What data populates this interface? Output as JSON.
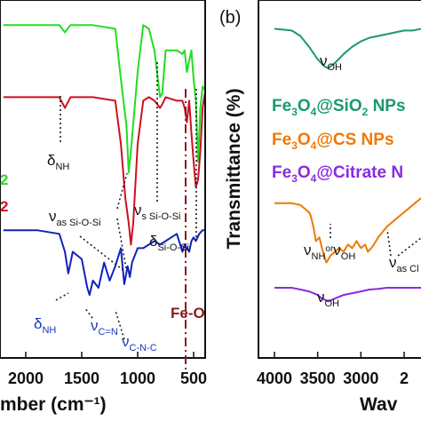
{
  "chart_data": [
    {
      "panel": "a",
      "type": "line",
      "xlabel_visible": "mber (cm⁻¹)",
      "x_reversed": true,
      "xlim": [
        2000,
        400
      ],
      "xticks": [
        "2000",
        "1500",
        "1000",
        "500"
      ],
      "visible_tick_fragment": "2",
      "series": [
        {
          "color": "#22dd22",
          "x": [
            2200,
            1700,
            1650,
            1600,
            1400,
            1200,
            1150,
            1100,
            1080,
            1060,
            1000,
            950,
            900,
            850,
            800,
            780,
            750,
            650,
            600,
            580,
            560,
            520,
            500,
            480,
            460,
            440,
            420,
            400
          ],
          "y": [
            0.93,
            0.93,
            0.91,
            0.93,
            0.93,
            0.92,
            0.78,
            0.65,
            0.52,
            0.58,
            0.8,
            0.93,
            0.92,
            0.86,
            0.73,
            0.74,
            0.86,
            0.86,
            0.85,
            0.86,
            0.8,
            0.86,
            0.78,
            0.72,
            0.55,
            0.7,
            0.76,
            0.75
          ]
        },
        {
          "color": "#cc1122",
          "x": [
            2200,
            1700,
            1650,
            1600,
            1400,
            1200,
            1150,
            1110,
            1080,
            1060,
            1040,
            1000,
            950,
            900,
            850,
            800,
            780,
            750,
            650,
            600,
            580,
            560,
            540,
            520,
            500,
            480,
            460,
            440,
            420,
            400
          ],
          "y": [
            0.73,
            0.73,
            0.7,
            0.73,
            0.73,
            0.72,
            0.6,
            0.45,
            0.38,
            0.32,
            0.38,
            0.6,
            0.72,
            0.73,
            0.72,
            0.7,
            0.71,
            0.73,
            0.72,
            0.72,
            0.7,
            0.66,
            0.72,
            0.63,
            0.55,
            0.48,
            0.5,
            0.58,
            0.7,
            0.74
          ]
        },
        {
          "color": "#1122bb",
          "x": [
            2200,
            1900,
            1700,
            1650,
            1620,
            1580,
            1500,
            1450,
            1430,
            1400,
            1350,
            1300,
            1250,
            1200,
            1150,
            1120,
            1090,
            1070,
            1050,
            1000,
            950,
            900,
            850,
            800,
            750,
            700,
            650,
            620,
            600,
            580,
            560,
            540,
            520,
            500,
            480,
            450,
            420,
            400
          ],
          "y": [
            0.36,
            0.36,
            0.35,
            0.3,
            0.24,
            0.3,
            0.28,
            0.2,
            0.18,
            0.22,
            0.2,
            0.27,
            0.22,
            0.26,
            0.31,
            0.21,
            0.26,
            0.23,
            0.27,
            0.31,
            0.31,
            0.32,
            0.33,
            0.32,
            0.33,
            0.34,
            0.35,
            0.32,
            0.3,
            0.32,
            0.31,
            0.3,
            0.33,
            0.34,
            0.33,
            0.35,
            0.36,
            0.36
          ]
        }
      ],
      "fragments": [
        "2",
        "2"
      ],
      "annotations": [
        {
          "text": "δ",
          "sub": "NH",
          "color": "#111111"
        },
        {
          "text": "ν",
          "sub": "as Si-O-Si",
          "color": "#111111"
        },
        {
          "text": "ν",
          "sub": "s Si-O-Si",
          "color": "#111111"
        },
        {
          "text": "δ",
          "sub": "Si-O-Si",
          "color": "#111111"
        },
        {
          "text": "δ",
          "sub": "NH",
          "color": "#1a35c0"
        },
        {
          "text": "ν",
          "sub": "C=N",
          "color": "#1a35c0"
        },
        {
          "text": "ν",
          "sub": "C-N-C",
          "color": "#1a35c0"
        },
        {
          "text": "Fe-O",
          "color": "#8b1a1a"
        }
      ]
    },
    {
      "panel": "b",
      "panel_label": "(b)",
      "type": "line",
      "ylabel": "Transmittance (%)",
      "xlabel_visible": "Wav",
      "x_reversed": true,
      "xlim": [
        4000,
        2300
      ],
      "xticks": [
        "4000",
        "3500",
        "3000",
        "2"
      ],
      "legend": [
        {
          "label_parts": [
            "Fe",
            "3",
            "O",
            "4",
            "@SiO",
            "2",
            " NPs"
          ],
          "color": "#1a9a6a"
        },
        {
          "label_parts": [
            "Fe",
            "3",
            "O",
            "4",
            "@CS NPs"
          ],
          "color": "#f07800"
        },
        {
          "label_parts": [
            "Fe",
            "3",
            "O",
            "4",
            "@Citrate N"
          ],
          "color": "#8a2be2"
        }
      ],
      "series": [
        {
          "color": "#1a9a6a",
          "x": [
            4000,
            3800,
            3700,
            3600,
            3500,
            3420,
            3380,
            3300,
            3200,
            3100,
            3000,
            2900,
            2800,
            2700,
            2600,
            2500,
            2400,
            2300
          ],
          "y": [
            0.92,
            0.915,
            0.9,
            0.87,
            0.835,
            0.815,
            0.81,
            0.825,
            0.85,
            0.87,
            0.885,
            0.895,
            0.9,
            0.905,
            0.91,
            0.915,
            0.915,
            0.92
          ]
        },
        {
          "color": "#f07800",
          "x": [
            4000,
            3800,
            3700,
            3650,
            3600,
            3580,
            3550,
            3520,
            3480,
            3440,
            3400,
            3350,
            3300,
            3250,
            3200,
            3150,
            3100,
            3050,
            3000,
            2950,
            2920,
            2880,
            2850,
            2800,
            2700,
            2600,
            2500,
            2400,
            2300
          ],
          "y": [
            0.435,
            0.435,
            0.43,
            0.42,
            0.41,
            0.4,
            0.37,
            0.33,
            0.34,
            0.3,
            0.27,
            0.29,
            0.3,
            0.31,
            0.3,
            0.32,
            0.31,
            0.33,
            0.31,
            0.32,
            0.3,
            0.31,
            0.32,
            0.34,
            0.37,
            0.39,
            0.41,
            0.43,
            0.45
          ]
        },
        {
          "color": "#8a2be2",
          "x": [
            4000,
            3800,
            3700,
            3600,
            3500,
            3450,
            3400,
            3380,
            3300,
            3200,
            3100,
            3000,
            2900,
            2800,
            2700,
            2600,
            2500,
            2400,
            2300
          ],
          "y": [
            0.2,
            0.2,
            0.195,
            0.19,
            0.18,
            0.17,
            0.165,
            0.162,
            0.17,
            0.18,
            0.185,
            0.19,
            0.195,
            0.197,
            0.2,
            0.2,
            0.2,
            0.2,
            0.2
          ]
        }
      ],
      "annotations": [
        {
          "text": "ν",
          "sub": "OH",
          "color": "#111111"
        },
        {
          "text": "ν",
          "sub": "NH",
          "mid": "or",
          "text2": "ν",
          "sub2": "OH",
          "color": "#111111"
        },
        {
          "text": "ν",
          "sub": "as Cl",
          "color": "#111111"
        },
        {
          "text": "ν",
          "sub": "OH",
          "color": "#111111"
        }
      ]
    }
  ]
}
